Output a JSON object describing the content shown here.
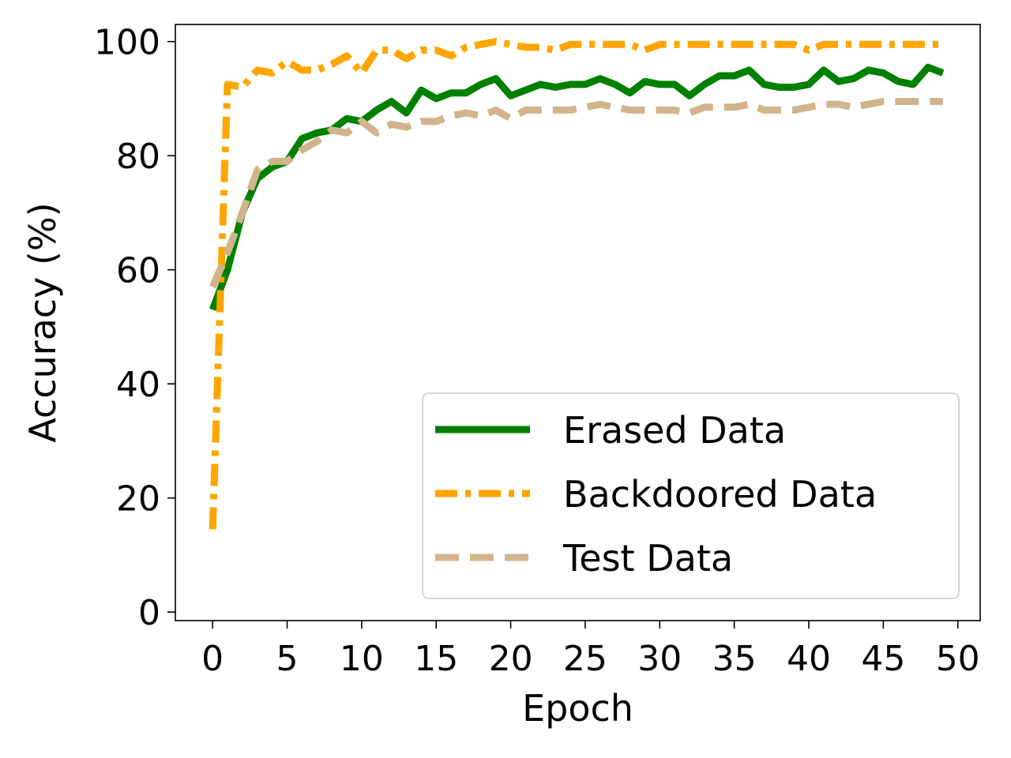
{
  "chart_data": {
    "type": "line",
    "title": "",
    "xlabel": "Epoch",
    "ylabel": "Accuracy (%)",
    "xlim": [
      -2.5,
      51.5
    ],
    "ylim": [
      -1.5,
      103
    ],
    "xticks": [
      0,
      5,
      10,
      15,
      20,
      25,
      30,
      35,
      40,
      45,
      50
    ],
    "yticks": [
      0,
      20,
      40,
      60,
      80,
      100
    ],
    "grid": false,
    "legend_position": "lower-right",
    "x": [
      0,
      1,
      2,
      3,
      4,
      5,
      6,
      7,
      8,
      9,
      10,
      11,
      12,
      13,
      14,
      15,
      16,
      17,
      18,
      19,
      20,
      21,
      22,
      23,
      24,
      25,
      26,
      27,
      28,
      29,
      30,
      31,
      32,
      33,
      34,
      35,
      36,
      37,
      38,
      39,
      40,
      41,
      42,
      43,
      44,
      45,
      46,
      47,
      48,
      49
    ],
    "series": [
      {
        "name": "Erased Data",
        "color": "#008000",
        "style": "solid",
        "values": [
          53,
          60,
          70,
          76,
          78,
          79,
          83,
          84,
          84.5,
          86.5,
          86,
          88,
          89.5,
          87.5,
          91.5,
          90,
          91,
          91,
          92.5,
          93.5,
          90.5,
          91.5,
          92.5,
          92,
          92.5,
          92.5,
          93.5,
          92.5,
          91,
          93,
          92.5,
          92.5,
          90.5,
          92.5,
          94,
          94,
          95,
          92.5,
          92,
          92,
          92.5,
          95,
          93,
          93.5,
          95,
          94.5,
          93,
          92.5,
          95.5,
          94.5
        ]
      },
      {
        "name": "Backdoored Data",
        "color": "#ffa500",
        "style": "dashdot",
        "values": [
          14.5,
          92.5,
          92,
          95,
          94.5,
          96.5,
          95,
          95,
          96,
          97.5,
          94.5,
          98.5,
          98.5,
          97,
          98.5,
          98.5,
          97.5,
          99,
          99.5,
          100,
          99.5,
          99,
          99,
          98.5,
          99.5,
          99.5,
          99.5,
          99.5,
          99.5,
          98.5,
          99.5,
          99.5,
          99.5,
          99.5,
          99.5,
          99.5,
          99.5,
          99.5,
          99.5,
          99.5,
          98.5,
          99.5,
          99.5,
          99.5,
          99.5,
          99.5,
          99.5,
          99.5,
          99.5,
          99.5
        ]
      },
      {
        "name": "Test Data",
        "color": "#d2b48c",
        "style": "dashed",
        "values": [
          57,
          63,
          70,
          77.5,
          79,
          79,
          81,
          82.5,
          84.5,
          84,
          86,
          84,
          85.5,
          85,
          86,
          86,
          87,
          87.5,
          87,
          88,
          86.5,
          88,
          88,
          88,
          88,
          88.5,
          89,
          88.5,
          88,
          88,
          88,
          88,
          87.5,
          88.5,
          88.5,
          88.5,
          89,
          88,
          88,
          88,
          88.5,
          89,
          89,
          88.5,
          89,
          89.5,
          89.5,
          89.5,
          89.5,
          89.5
        ]
      }
    ]
  }
}
